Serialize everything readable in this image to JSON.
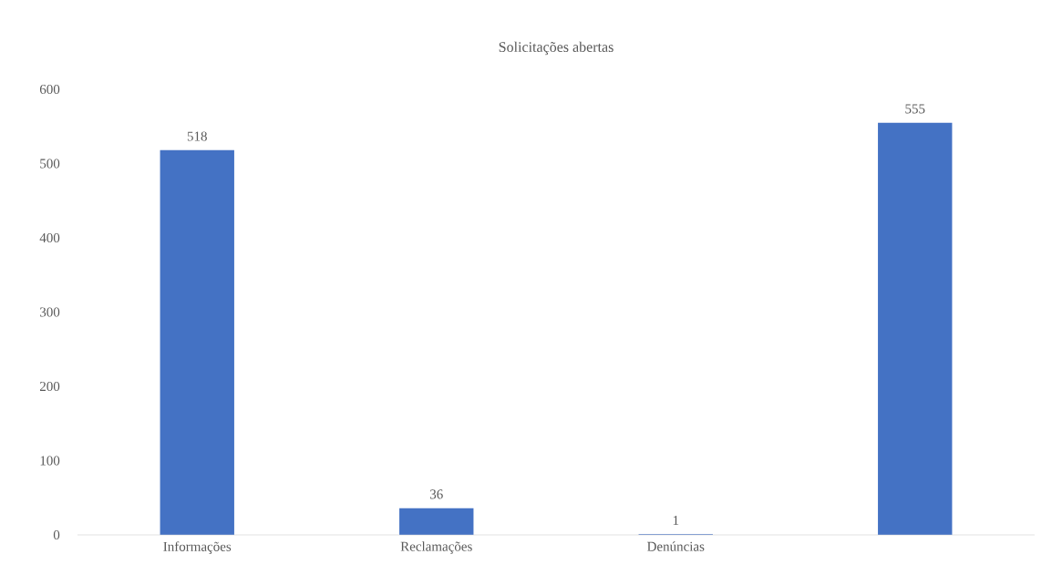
{
  "chart_data": {
    "type": "bar",
    "title": "Solicitações abertas",
    "categories": [
      "Informações",
      "Reclamações",
      "Denúncias",
      null
    ],
    "values": [
      518,
      36,
      1,
      555
    ],
    "color": "#4472c4",
    "ylim": [
      0,
      600
    ],
    "yticks": [
      0,
      100,
      200,
      300,
      400,
      500,
      600
    ],
    "data_labels": true
  }
}
